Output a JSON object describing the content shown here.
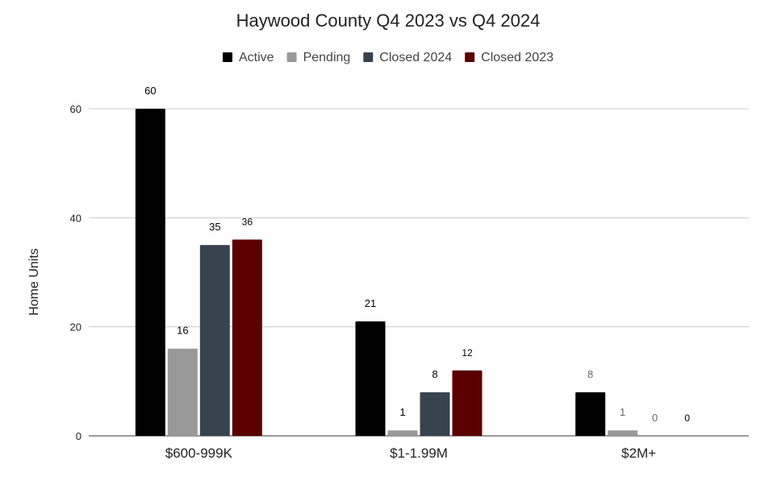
{
  "chart_data": {
    "type": "bar",
    "title": "Haywood County Q4 2023 vs Q4 2024",
    "xlabel": "",
    "ylabel": "Home Units",
    "ylim": [
      0,
      60
    ],
    "yticks": [
      0,
      20,
      40,
      60
    ],
    "grid": true,
    "legend_position": "top",
    "categories": [
      "$600-999K",
      "$1-1.99M",
      "$2M+"
    ],
    "series": [
      {
        "name": "Active",
        "color": "#000000",
        "values": [
          60,
          21,
          8
        ],
        "label_colors": [
          "#000000",
          "#000000",
          "#666666"
        ]
      },
      {
        "name": "Pending",
        "color": "#999999",
        "values": [
          16,
          1,
          1
        ],
        "label_colors": [
          "#000000",
          "#000000",
          "#666666"
        ]
      },
      {
        "name": "Closed 2024",
        "color": "#37434f",
        "values": [
          35,
          8,
          0
        ],
        "label_colors": [
          "#000000",
          "#000000",
          "#666666"
        ]
      },
      {
        "name": "Closed 2023",
        "color": "#5b0000",
        "values": [
          36,
          12,
          0
        ],
        "label_colors": [
          "#000000",
          "#000000",
          "#000000"
        ]
      }
    ]
  }
}
